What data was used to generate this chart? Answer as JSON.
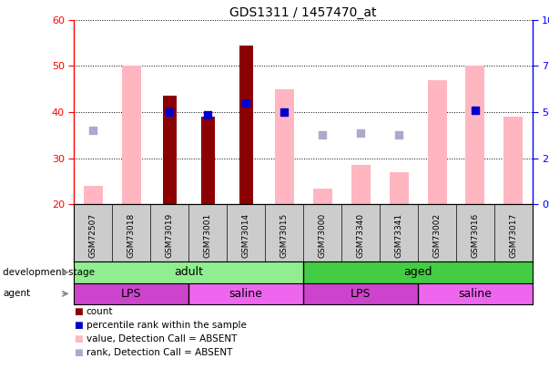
{
  "title": "GDS1311 / 1457470_at",
  "samples": [
    "GSM72507",
    "GSM73018",
    "GSM73019",
    "GSM73001",
    "GSM73014",
    "GSM73015",
    "GSM73000",
    "GSM73340",
    "GSM73341",
    "GSM73002",
    "GSM73016",
    "GSM73017"
  ],
  "red_bars": [
    null,
    null,
    43.5,
    39.0,
    54.5,
    null,
    null,
    null,
    null,
    null,
    null,
    null
  ],
  "blue_dots": [
    null,
    null,
    40.0,
    39.5,
    42.0,
    40.0,
    null,
    null,
    null,
    null,
    40.5,
    null
  ],
  "pink_bars": [
    24.0,
    50.0,
    null,
    null,
    null,
    45.0,
    23.5,
    28.5,
    27.0,
    47.0,
    50.0,
    39.0
  ],
  "lavender_dots": [
    36.0,
    null,
    null,
    null,
    null,
    null,
    35.0,
    35.5,
    35.0,
    null,
    null,
    null
  ],
  "ylim": [
    20,
    60
  ],
  "yticks_left": [
    20,
    30,
    40,
    50,
    60
  ],
  "color_red_bar": "#8B0000",
  "color_blue_dot": "#0000CD",
  "color_pink_bar": "#FFB6C1",
  "color_lavender_dot": "#AAAACC",
  "color_adult": "#90EE90",
  "color_aged": "#44CC44",
  "color_lps": "#CC44CC",
  "color_saline": "#EE66EE",
  "background_plot": "#FFFFFF",
  "background_label": "#CCCCCC",
  "red_bar_width": 0.35,
  "pink_bar_width": 0.5
}
